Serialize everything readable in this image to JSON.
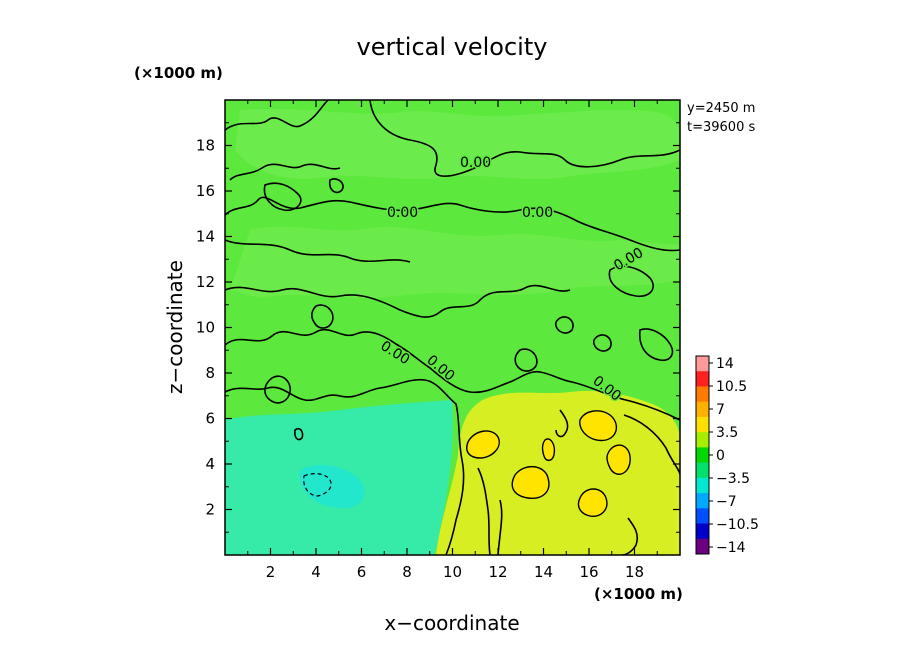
{
  "chart_data": {
    "type": "heatmap",
    "title": "vertical velocity",
    "xlabel": "x−coordinate",
    "ylabel": "z−coordinate",
    "x_unit": "(×1000 m)",
    "y_unit": "(×1000 m)",
    "xlim": [
      0,
      20
    ],
    "ylim": [
      0,
      20
    ],
    "x_ticks": [
      2,
      4,
      6,
      8,
      10,
      12,
      14,
      16,
      18
    ],
    "y_ticks": [
      2,
      4,
      6,
      8,
      10,
      12,
      14,
      16,
      18
    ],
    "annotations": [
      "y=2450 m",
      "t=39600 s"
    ],
    "contour_label": "0.00",
    "colorbar": {
      "labels": [
        "14",
        "10.5",
        "7",
        "3.5",
        "0",
        "−3.5",
        "−7",
        "−10.5",
        "−14"
      ],
      "colors": [
        "#ff9a9a",
        "#ff2020",
        "#ff7b00",
        "#ffb000",
        "#ffe000",
        "#a6ef00",
        "#00d800",
        "#00e06a",
        "#00e8d0",
        "#00a8ff",
        "#0050ff",
        "#0000c8",
        "#6a0080"
      ]
    },
    "regions": [
      {
        "name": "background",
        "color": "#5ce83c"
      },
      {
        "name": "updraft",
        "color": "#d6ee22"
      },
      {
        "name": "updraft-core",
        "color": "#ffe400"
      },
      {
        "name": "downdraft",
        "color": "#36eaa8"
      }
    ]
  }
}
